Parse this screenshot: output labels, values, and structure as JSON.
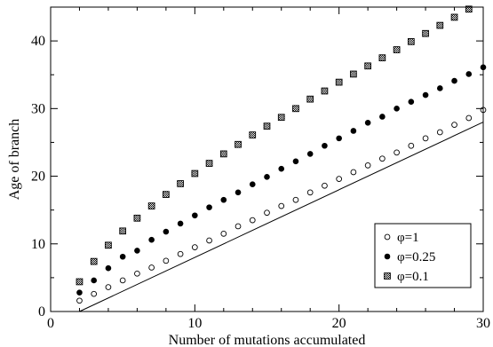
{
  "chart_data": {
    "type": "scatter",
    "xlabel": "Number of mutations accumulated",
    "ylabel": "Age of branch",
    "xlim": [
      0,
      30
    ],
    "ylim": [
      0,
      45
    ],
    "xticks": [
      0,
      10,
      20,
      30
    ],
    "yticks": [
      0,
      10,
      20,
      30,
      40
    ],
    "grid": false,
    "legend_position": "bottom-right",
    "series": [
      {
        "name": "φ=1",
        "marker": "open-circle",
        "x": [
          2,
          3,
          4,
          5,
          6,
          7,
          8,
          9,
          10,
          11,
          12,
          13,
          14,
          15,
          16,
          17,
          18,
          19,
          20,
          21,
          22,
          23,
          24,
          25,
          26,
          27,
          28,
          29,
          30
        ],
        "y": [
          1.6,
          2.6,
          3.6,
          4.6,
          5.6,
          6.5,
          7.5,
          8.5,
          9.5,
          10.5,
          11.5,
          12.6,
          13.5,
          14.6,
          15.6,
          16.5,
          17.6,
          18.6,
          19.6,
          20.6,
          21.6,
          22.6,
          23.5,
          24.5,
          25.6,
          26.5,
          27.6,
          28.6,
          29.8
        ]
      },
      {
        "name": "φ=0.25",
        "marker": "filled-circle",
        "x": [
          2,
          3,
          4,
          5,
          6,
          7,
          8,
          9,
          10,
          11,
          12,
          13,
          14,
          15,
          16,
          17,
          18,
          19,
          20,
          21,
          22,
          23,
          24,
          25,
          26,
          27,
          28,
          29,
          30
        ],
        "y": [
          2.8,
          4.6,
          6.4,
          8.1,
          9.0,
          10.6,
          11.8,
          13.0,
          14.2,
          15.4,
          16.5,
          17.6,
          18.8,
          19.9,
          21.1,
          22.2,
          23.3,
          24.5,
          25.6,
          26.7,
          27.9,
          28.8,
          30.0,
          31.0,
          32.0,
          33.0,
          34.1,
          35.1,
          36.1
        ]
      },
      {
        "name": "φ=0.1",
        "marker": "hatched-square",
        "x": [
          2,
          3,
          4,
          5,
          6,
          7,
          8,
          9,
          10,
          11,
          12,
          13,
          14,
          15,
          16,
          17,
          18,
          19,
          20,
          21,
          22,
          23,
          24,
          25,
          26,
          27,
          28,
          29
        ],
        "y": [
          4.4,
          7.4,
          9.8,
          11.9,
          13.8,
          15.6,
          17.3,
          18.9,
          20.4,
          21.9,
          23.3,
          24.7,
          26.1,
          27.4,
          28.7,
          30.0,
          31.4,
          32.6,
          33.9,
          35.1,
          36.3,
          37.5,
          38.7,
          39.9,
          41.1,
          42.3,
          43.5,
          44.7
        ]
      }
    ],
    "reference_line": {
      "x": [
        2,
        30
      ],
      "y": [
        0,
        28
      ]
    }
  }
}
